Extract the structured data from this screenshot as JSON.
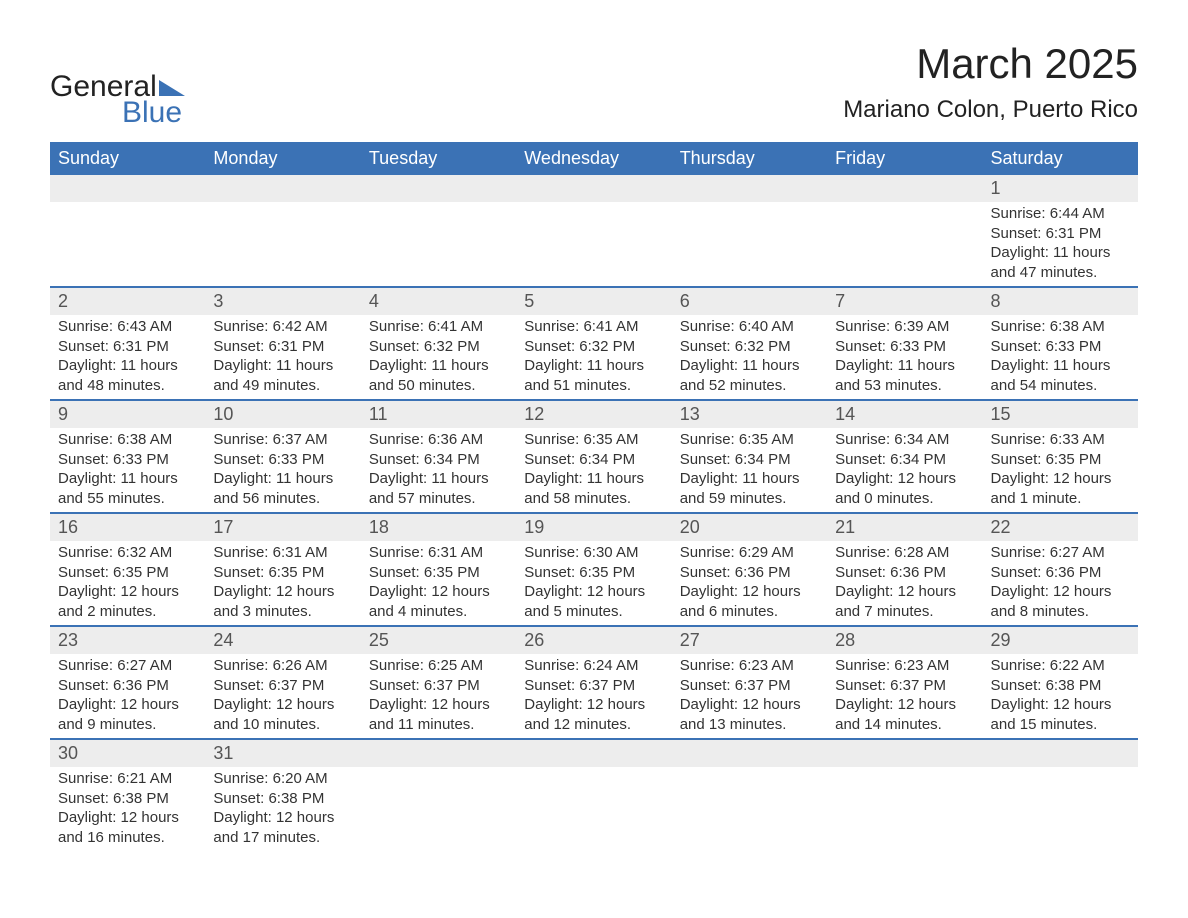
{
  "logo": {
    "word1": "General",
    "word2": "Blue",
    "triangle_color": "#3b72b5"
  },
  "title": "March 2025",
  "subtitle": "Mariano Colon, Puerto Rico",
  "colors": {
    "header_bg": "#3b72b5",
    "header_text": "#ffffff",
    "daynum_bg": "#ededed",
    "row_divider": "#3b72b5",
    "body_text": "#333333"
  },
  "font_sizes": {
    "title": 42,
    "subtitle": 24,
    "day_header": 18,
    "daynum": 18,
    "cell": 15
  },
  "day_headers": [
    "Sunday",
    "Monday",
    "Tuesday",
    "Wednesday",
    "Thursday",
    "Friday",
    "Saturday"
  ],
  "weeks": [
    [
      null,
      null,
      null,
      null,
      null,
      null,
      {
        "n": "1",
        "sunrise": "Sunrise: 6:44 AM",
        "sunset": "Sunset: 6:31 PM",
        "daylight": "Daylight: 11 hours and 47 minutes."
      }
    ],
    [
      {
        "n": "2",
        "sunrise": "Sunrise: 6:43 AM",
        "sunset": "Sunset: 6:31 PM",
        "daylight": "Daylight: 11 hours and 48 minutes."
      },
      {
        "n": "3",
        "sunrise": "Sunrise: 6:42 AM",
        "sunset": "Sunset: 6:31 PM",
        "daylight": "Daylight: 11 hours and 49 minutes."
      },
      {
        "n": "4",
        "sunrise": "Sunrise: 6:41 AM",
        "sunset": "Sunset: 6:32 PM",
        "daylight": "Daylight: 11 hours and 50 minutes."
      },
      {
        "n": "5",
        "sunrise": "Sunrise: 6:41 AM",
        "sunset": "Sunset: 6:32 PM",
        "daylight": "Daylight: 11 hours and 51 minutes."
      },
      {
        "n": "6",
        "sunrise": "Sunrise: 6:40 AM",
        "sunset": "Sunset: 6:32 PM",
        "daylight": "Daylight: 11 hours and 52 minutes."
      },
      {
        "n": "7",
        "sunrise": "Sunrise: 6:39 AM",
        "sunset": "Sunset: 6:33 PM",
        "daylight": "Daylight: 11 hours and 53 minutes."
      },
      {
        "n": "8",
        "sunrise": "Sunrise: 6:38 AM",
        "sunset": "Sunset: 6:33 PM",
        "daylight": "Daylight: 11 hours and 54 minutes."
      }
    ],
    [
      {
        "n": "9",
        "sunrise": "Sunrise: 6:38 AM",
        "sunset": "Sunset: 6:33 PM",
        "daylight": "Daylight: 11 hours and 55 minutes."
      },
      {
        "n": "10",
        "sunrise": "Sunrise: 6:37 AM",
        "sunset": "Sunset: 6:33 PM",
        "daylight": "Daylight: 11 hours and 56 minutes."
      },
      {
        "n": "11",
        "sunrise": "Sunrise: 6:36 AM",
        "sunset": "Sunset: 6:34 PM",
        "daylight": "Daylight: 11 hours and 57 minutes."
      },
      {
        "n": "12",
        "sunrise": "Sunrise: 6:35 AM",
        "sunset": "Sunset: 6:34 PM",
        "daylight": "Daylight: 11 hours and 58 minutes."
      },
      {
        "n": "13",
        "sunrise": "Sunrise: 6:35 AM",
        "sunset": "Sunset: 6:34 PM",
        "daylight": "Daylight: 11 hours and 59 minutes."
      },
      {
        "n": "14",
        "sunrise": "Sunrise: 6:34 AM",
        "sunset": "Sunset: 6:34 PM",
        "daylight": "Daylight: 12 hours and 0 minutes."
      },
      {
        "n": "15",
        "sunrise": "Sunrise: 6:33 AM",
        "sunset": "Sunset: 6:35 PM",
        "daylight": "Daylight: 12 hours and 1 minute."
      }
    ],
    [
      {
        "n": "16",
        "sunrise": "Sunrise: 6:32 AM",
        "sunset": "Sunset: 6:35 PM",
        "daylight": "Daylight: 12 hours and 2 minutes."
      },
      {
        "n": "17",
        "sunrise": "Sunrise: 6:31 AM",
        "sunset": "Sunset: 6:35 PM",
        "daylight": "Daylight: 12 hours and 3 minutes."
      },
      {
        "n": "18",
        "sunrise": "Sunrise: 6:31 AM",
        "sunset": "Sunset: 6:35 PM",
        "daylight": "Daylight: 12 hours and 4 minutes."
      },
      {
        "n": "19",
        "sunrise": "Sunrise: 6:30 AM",
        "sunset": "Sunset: 6:35 PM",
        "daylight": "Daylight: 12 hours and 5 minutes."
      },
      {
        "n": "20",
        "sunrise": "Sunrise: 6:29 AM",
        "sunset": "Sunset: 6:36 PM",
        "daylight": "Daylight: 12 hours and 6 minutes."
      },
      {
        "n": "21",
        "sunrise": "Sunrise: 6:28 AM",
        "sunset": "Sunset: 6:36 PM",
        "daylight": "Daylight: 12 hours and 7 minutes."
      },
      {
        "n": "22",
        "sunrise": "Sunrise: 6:27 AM",
        "sunset": "Sunset: 6:36 PM",
        "daylight": "Daylight: 12 hours and 8 minutes."
      }
    ],
    [
      {
        "n": "23",
        "sunrise": "Sunrise: 6:27 AM",
        "sunset": "Sunset: 6:36 PM",
        "daylight": "Daylight: 12 hours and 9 minutes."
      },
      {
        "n": "24",
        "sunrise": "Sunrise: 6:26 AM",
        "sunset": "Sunset: 6:37 PM",
        "daylight": "Daylight: 12 hours and 10 minutes."
      },
      {
        "n": "25",
        "sunrise": "Sunrise: 6:25 AM",
        "sunset": "Sunset: 6:37 PM",
        "daylight": "Daylight: 12 hours and 11 minutes."
      },
      {
        "n": "26",
        "sunrise": "Sunrise: 6:24 AM",
        "sunset": "Sunset: 6:37 PM",
        "daylight": "Daylight: 12 hours and 12 minutes."
      },
      {
        "n": "27",
        "sunrise": "Sunrise: 6:23 AM",
        "sunset": "Sunset: 6:37 PM",
        "daylight": "Daylight: 12 hours and 13 minutes."
      },
      {
        "n": "28",
        "sunrise": "Sunrise: 6:23 AM",
        "sunset": "Sunset: 6:37 PM",
        "daylight": "Daylight: 12 hours and 14 minutes."
      },
      {
        "n": "29",
        "sunrise": "Sunrise: 6:22 AM",
        "sunset": "Sunset: 6:38 PM",
        "daylight": "Daylight: 12 hours and 15 minutes."
      }
    ],
    [
      {
        "n": "30",
        "sunrise": "Sunrise: 6:21 AM",
        "sunset": "Sunset: 6:38 PM",
        "daylight": "Daylight: 12 hours and 16 minutes."
      },
      {
        "n": "31",
        "sunrise": "Sunrise: 6:20 AM",
        "sunset": "Sunset: 6:38 PM",
        "daylight": "Daylight: 12 hours and 17 minutes."
      },
      null,
      null,
      null,
      null,
      null
    ]
  ]
}
